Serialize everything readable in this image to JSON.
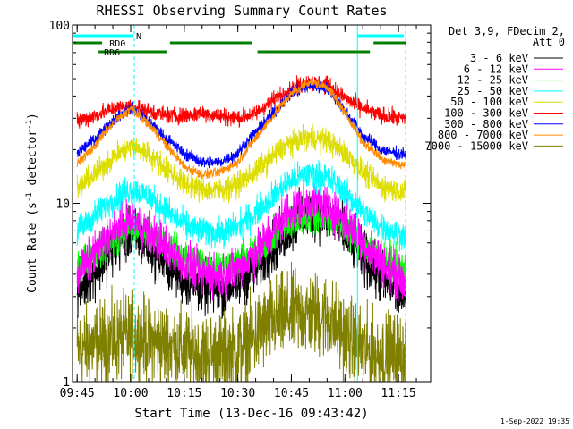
{
  "chart_data": {
    "type": "line",
    "title": "RHESSI Observing Summary Count Rates",
    "xlabel": "Start Time (13-Dec-16 09:43:42)",
    "ylabel": "Count Rate (s⁻¹ detector⁻¹)",
    "ylabel_main": "Count Rate (s",
    "ylabel_sup1": "-1",
    "ylabel_mid": " detector",
    "ylabel_sup2": "-1",
    "ylabel_end": ")",
    "yscale": "log",
    "ylim": [
      1,
      100
    ],
    "xlim": [
      "09:43:42",
      "11:24:00"
    ],
    "xticks": [
      "09:45",
      "10:00",
      "10:15",
      "10:30",
      "10:45",
      "11:00",
      "11:15"
    ],
    "yticks": [
      "1",
      "10",
      "100"
    ],
    "legend_placement": "right",
    "legend_header": [
      "Det 3,9, FDecim 2,",
      "Att 0"
    ],
    "series": [
      {
        "name": "3 - 6 keV",
        "color": "#000000",
        "x": [
          "09:45",
          "09:50",
          "09:55",
          "10:00",
          "10:05",
          "10:10",
          "10:15",
          "10:20",
          "10:25",
          "10:30",
          "10:35",
          "10:40",
          "10:45",
          "10:50",
          "10:55",
          "11:00",
          "11:05",
          "11:10",
          "11:15",
          "11:17"
        ],
        "y": [
          3.2,
          4.2,
          5.5,
          6.8,
          5.8,
          4.6,
          3.8,
          3.4,
          3.3,
          3.6,
          4.3,
          5.6,
          7.5,
          8.8,
          8.6,
          6.8,
          5.0,
          3.8,
          3.2,
          3.0
        ]
      },
      {
        "name": "6 - 12 keV",
        "color": "#ff00ff",
        "x": [
          "09:45",
          "09:50",
          "09:55",
          "10:00",
          "10:05",
          "10:10",
          "10:15",
          "10:20",
          "10:25",
          "10:30",
          "10:35",
          "10:40",
          "10:45",
          "10:50",
          "10:55",
          "11:00",
          "11:05",
          "11:10",
          "11:15",
          "11:17"
        ],
        "y": [
          4.0,
          5.2,
          6.8,
          8.0,
          7.0,
          5.6,
          4.6,
          4.0,
          3.9,
          4.3,
          5.2,
          7.0,
          9.3,
          10.2,
          9.8,
          8.0,
          6.0,
          4.6,
          3.8,
          3.6
        ]
      },
      {
        "name": "12 - 25 keV",
        "color": "#00ff00",
        "x": [
          "09:45",
          "09:50",
          "09:55",
          "10:00",
          "10:05",
          "10:10",
          "10:15",
          "10:20",
          "10:25",
          "10:30",
          "10:35",
          "10:40",
          "10:45",
          "10:50",
          "10:55",
          "11:00",
          "11:05",
          "11:10",
          "11:15",
          "11:17"
        ],
        "y": [
          4.5,
          5.2,
          6.2,
          7.2,
          6.8,
          5.8,
          5.0,
          4.6,
          4.4,
          4.7,
          5.4,
          6.6,
          7.8,
          8.6,
          8.4,
          7.2,
          5.8,
          5.0,
          4.5,
          4.3
        ]
      },
      {
        "name": "25 - 50 keV",
        "color": "#00ffff",
        "x": [
          "09:45",
          "09:50",
          "09:55",
          "10:00",
          "10:05",
          "10:10",
          "10:15",
          "10:20",
          "10:25",
          "10:30",
          "10:35",
          "10:40",
          "10:45",
          "10:50",
          "10:55",
          "11:00",
          "11:05",
          "11:10",
          "11:15",
          "11:17"
        ],
        "y": [
          7.0,
          8.5,
          10.5,
          12.0,
          11.0,
          9.0,
          7.6,
          7.0,
          6.8,
          7.4,
          8.8,
          11.0,
          13.5,
          14.5,
          14.0,
          11.5,
          9.0,
          7.4,
          6.8,
          6.6
        ]
      },
      {
        "name": "50 - 100 keV",
        "color": "#dddd00",
        "x": [
          "09:45",
          "09:50",
          "09:55",
          "10:00",
          "10:05",
          "10:10",
          "10:15",
          "10:20",
          "10:25",
          "10:30",
          "10:35",
          "10:40",
          "10:45",
          "10:50",
          "10:55",
          "11:00",
          "11:05",
          "11:10",
          "11:15",
          "11:17"
        ],
        "y": [
          12.0,
          14.5,
          18.0,
          21.0,
          19.0,
          15.5,
          13.0,
          12.0,
          11.8,
          12.8,
          15.0,
          18.5,
          22.0,
          23.5,
          22.5,
          19.0,
          15.0,
          12.5,
          11.8,
          11.5
        ]
      },
      {
        "name": "100 - 300 keV",
        "color": "#ff0000",
        "x": [
          "09:45",
          "09:50",
          "09:55",
          "10:00",
          "10:05",
          "10:10",
          "10:15",
          "10:20",
          "10:25",
          "10:30",
          "10:35",
          "10:40",
          "10:45",
          "10:50",
          "10:55",
          "11:00",
          "11:05",
          "11:10",
          "11:15",
          "11:17"
        ],
        "y": [
          29,
          31,
          34,
          35,
          33,
          31,
          31,
          32,
          31,
          30,
          32,
          38,
          44,
          48,
          46,
          39,
          34,
          31,
          30,
          30
        ]
      },
      {
        "name": "300 - 800 keV",
        "color": "#0000ff",
        "x": [
          "09:45",
          "09:50",
          "09:55",
          "10:00",
          "10:05",
          "10:10",
          "10:15",
          "10:20",
          "10:25",
          "10:30",
          "10:35",
          "10:40",
          "10:45",
          "10:50",
          "10:55",
          "11:00",
          "11:05",
          "11:10",
          "11:15",
          "11:17"
        ],
        "y": [
          19,
          23,
          29,
          34,
          29,
          23,
          19,
          17,
          17,
          19,
          25,
          32,
          41,
          46,
          44,
          33,
          24,
          20,
          19,
          19
        ]
      },
      {
        "name": "800 - 7000 keV",
        "color": "#ff8c00",
        "x": [
          "09:45",
          "09:50",
          "09:55",
          "10:00",
          "10:05",
          "10:10",
          "10:15",
          "10:20",
          "10:25",
          "10:30",
          "10:35",
          "10:40",
          "10:45",
          "10:50",
          "10:55",
          "11:00",
          "11:05",
          "11:10",
          "11:15",
          "11:17"
        ],
        "y": [
          16.5,
          21,
          28,
          34,
          28,
          21,
          16,
          14.5,
          15,
          17,
          23,
          31,
          41,
          48,
          45,
          32,
          22,
          18,
          16.5,
          16.5
        ]
      },
      {
        "name": "7000 - 15000 keV",
        "color": "#808000",
        "x": [
          "09:45",
          "09:50",
          "09:55",
          "10:00",
          "10:05",
          "10:10",
          "10:15",
          "10:20",
          "10:25",
          "10:30",
          "10:35",
          "10:40",
          "10:45",
          "10:50",
          "10:55",
          "11:00",
          "11:05",
          "11:10",
          "11:15",
          "11:17"
        ],
        "y": [
          1.5,
          1.6,
          1.7,
          1.8,
          1.7,
          1.6,
          1.5,
          1.4,
          1.4,
          1.5,
          1.8,
          2.2,
          2.4,
          2.4,
          2.3,
          1.8,
          1.5,
          1.4,
          1.4,
          1.4
        ]
      }
    ],
    "state_bars": [
      {
        "label": "N",
        "color": "#00ffff",
        "segments": [
          [
            "09:43:42",
            "10:00:30"
          ],
          [
            "11:03:30",
            "11:16:30"
          ]
        ]
      },
      {
        "label": "RD0",
        "color": "#008000",
        "segments": [
          [
            "09:44:00",
            "09:52:00"
          ],
          [
            "10:11:00",
            "10:34:00"
          ],
          [
            "11:08:00",
            "11:17:00"
          ]
        ]
      },
      {
        "label": "RD6",
        "color": "#008000",
        "segments": [
          [
            "09:51:00",
            "10:10:00"
          ],
          [
            "10:35:30",
            "11:07:00"
          ]
        ]
      }
    ],
    "vlines": [
      {
        "x": "10:01:00",
        "color": "#00ffff",
        "style": "dashed"
      },
      {
        "x": "11:03:30",
        "color": "#00ffff",
        "style": "solid"
      },
      {
        "x": "11:17:00",
        "color": "#00ffff",
        "style": "dashed"
      }
    ],
    "footer_date": "1-Sep-2022 19:35"
  }
}
